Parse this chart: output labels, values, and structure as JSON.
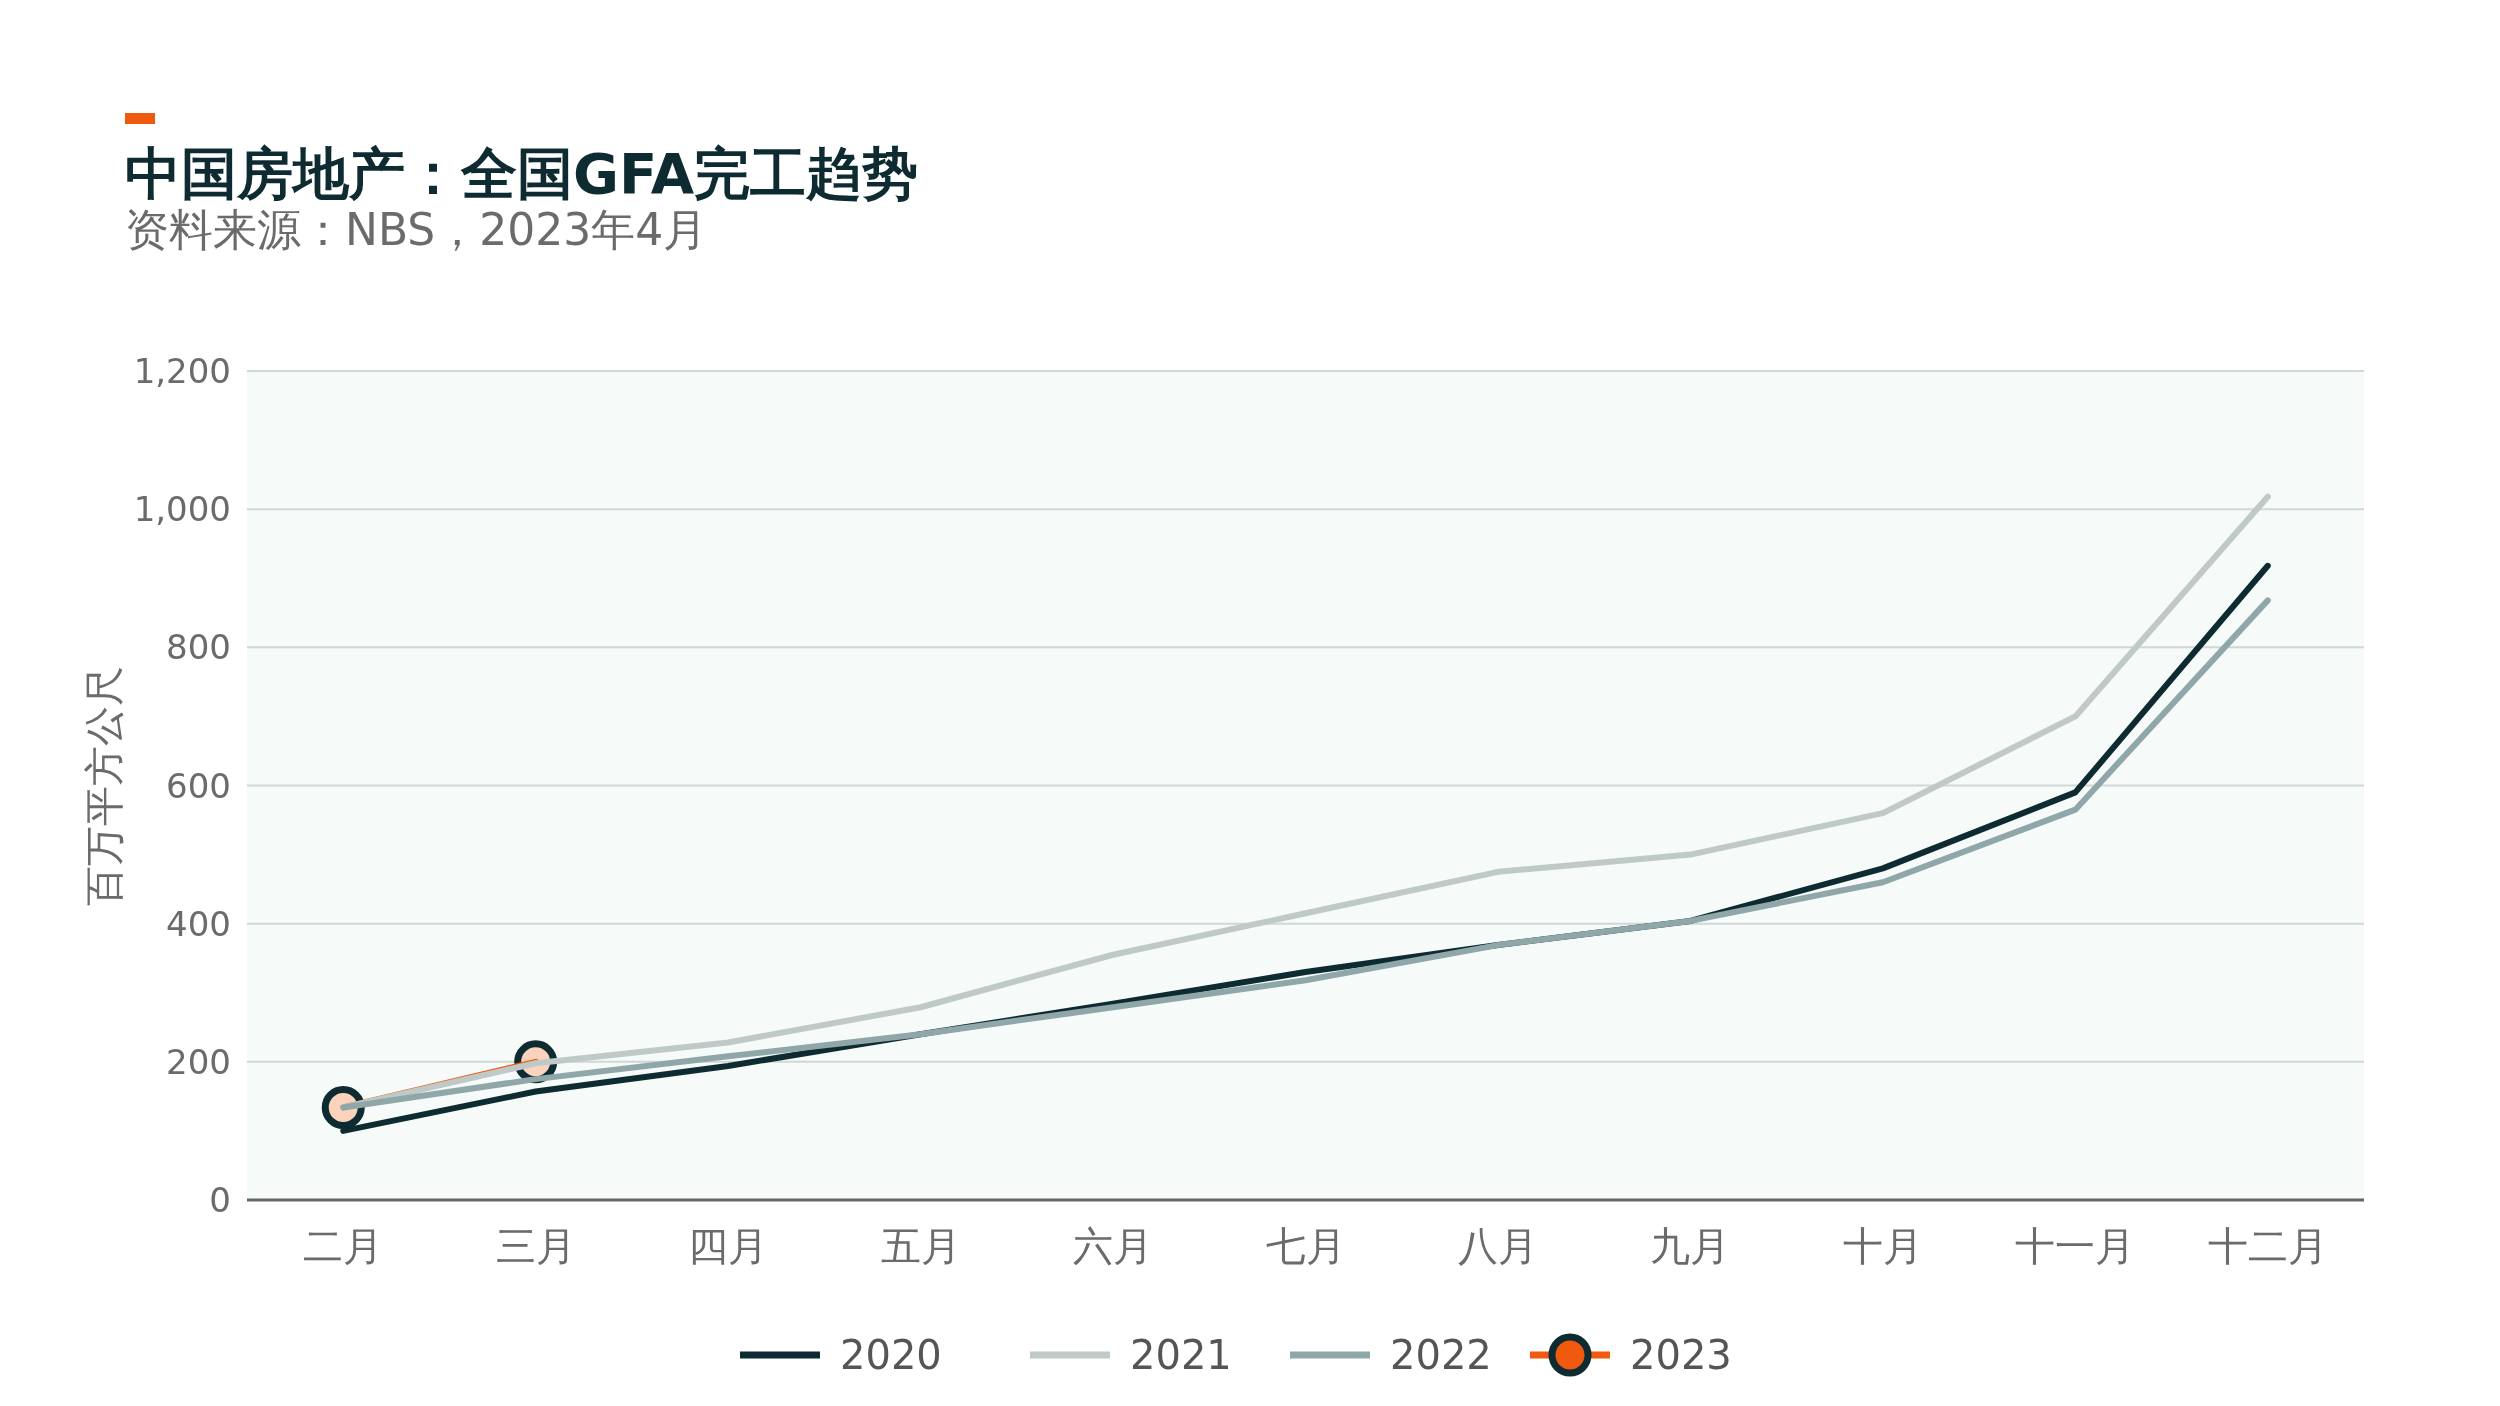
{
  "chart_data": {
    "type": "line",
    "title": "中国房地产：全国GFA完工趋势",
    "subtitle": "资料来源：NBS，2023年4月",
    "ylabel": "百万平方公尺",
    "categories": [
      "二月",
      "三月",
      "四月",
      "五月",
      "六月",
      "七月",
      "八月",
      "九月",
      "十月",
      "十一月",
      "十二月"
    ],
    "ylim": [
      0,
      1200
    ],
    "yticks": [
      0,
      {
        "value": 200,
        "label": "200"
      },
      {
        "value": 400,
        "label": "400"
      },
      {
        "value": 600,
        "label": "600"
      },
      {
        "value": 800,
        "label": "800"
      },
      {
        "value": 1000,
        "label": "1,000"
      },
      {
        "value": 1200,
        "label": "1,200"
      }
    ],
    "grid": "y",
    "legend": "bottom",
    "line_style": "solid",
    "series": [
      {
        "name": "2020",
        "color": "#0d2b30",
        "values": [
          100,
          157,
          194,
          240,
          284,
          330,
          369,
          404,
          480,
          590,
          918
        ]
      },
      {
        "name": "2021",
        "color": "#bfcac8",
        "values": [
          134,
          198,
          228,
          279,
          355,
          415,
          475,
          500,
          560,
          700,
          1018
        ]
      },
      {
        "name": "2022",
        "color": "#8fa7a8",
        "values": [
          134,
          175,
          208,
          240,
          279,
          318,
          369,
          404,
          460,
          565,
          868
        ]
      },
      {
        "name": "2023",
        "color": "#f05a0f",
        "marker": "circle",
        "values": [
          134,
          200,
          null,
          null,
          null,
          null,
          null,
          null,
          null,
          null,
          null
        ]
      }
    ]
  }
}
